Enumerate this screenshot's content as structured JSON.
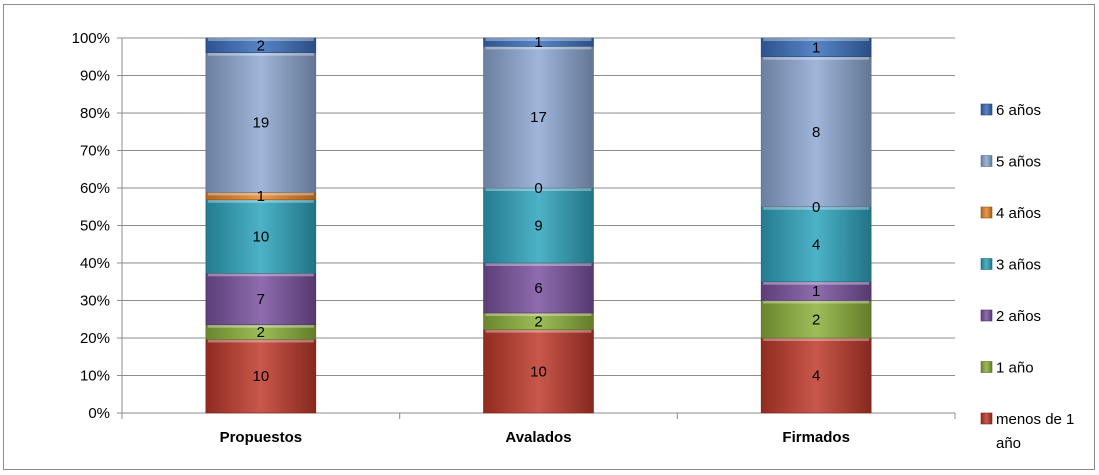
{
  "chart_data": {
    "type": "bar",
    "stacked": true,
    "normalized_percent": true,
    "categories": [
      "Propuestos",
      "Avalados",
      "Firmados"
    ],
    "series": [
      {
        "name": "menos de 1 año",
        "color": "#c0392b",
        "values": [
          10,
          10,
          4
        ]
      },
      {
        "name": "1 año",
        "color": "#8db13a",
        "values": [
          2,
          2,
          2
        ]
      },
      {
        "name": "2 años",
        "color": "#7b52a0",
        "values": [
          7,
          6,
          1
        ]
      },
      {
        "name": "3 años",
        "color": "#2ea4bd",
        "values": [
          10,
          9,
          4
        ]
      },
      {
        "name": "4 años",
        "color": "#e8862a",
        "values": [
          1,
          0,
          0
        ]
      },
      {
        "name": "5 años",
        "color": "#8ea9d4",
        "values": [
          19,
          17,
          8
        ]
      },
      {
        "name": "6 años",
        "color": "#3a6fbd",
        "values": [
          2,
          1,
          1
        ]
      }
    ],
    "y_ticks": [
      "0%",
      "10%",
      "20%",
      "30%",
      "40%",
      "50%",
      "60%",
      "70%",
      "80%",
      "90%",
      "100%"
    ],
    "ylim": [
      0,
      100
    ],
    "grid": true,
    "legend": {
      "placement": "right",
      "entries": [
        "6 años",
        "5 años",
        "4 años",
        "3 años",
        "2 años",
        "1 año",
        "menos de 1 año"
      ],
      "wrap_lines": {
        "menos de 1 año": [
          "menos de 1",
          "año"
        ]
      }
    }
  }
}
